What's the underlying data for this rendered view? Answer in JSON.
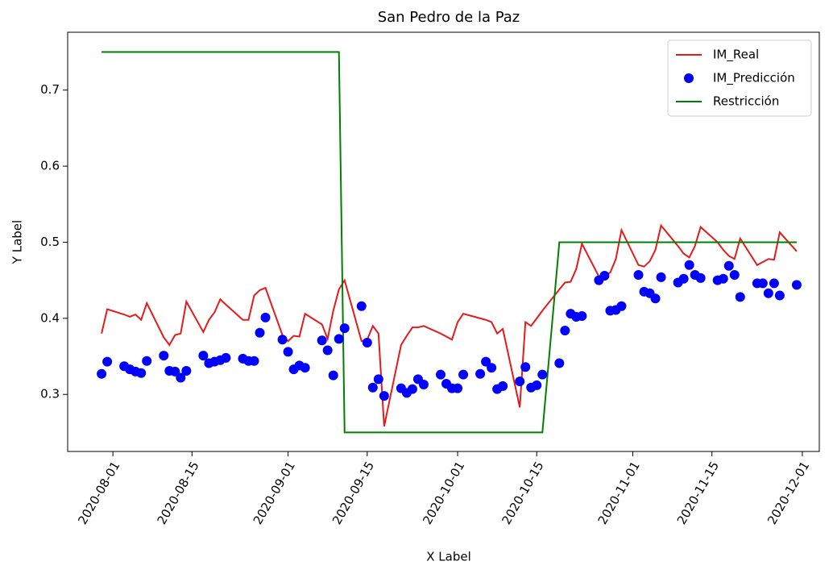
{
  "chart_data": {
    "type": "line",
    "title": "San Pedro de la Paz",
    "xlabel": "X Label",
    "ylabel": "Y Label",
    "x": [
      "2020-07-30",
      "2020-07-31",
      "2020-08-03",
      "2020-08-04",
      "2020-08-05",
      "2020-08-06",
      "2020-08-07",
      "2020-08-10",
      "2020-08-11",
      "2020-08-12",
      "2020-08-13",
      "2020-08-14",
      "2020-08-17",
      "2020-08-18",
      "2020-08-19",
      "2020-08-20",
      "2020-08-21",
      "2020-08-24",
      "2020-08-25",
      "2020-08-26",
      "2020-08-27",
      "2020-08-28",
      "2020-08-31",
      "2020-09-01",
      "2020-09-02",
      "2020-09-03",
      "2020-09-04",
      "2020-09-07",
      "2020-09-08",
      "2020-09-09",
      "2020-09-10",
      "2020-09-11",
      "2020-09-14",
      "2020-09-15",
      "2020-09-16",
      "2020-09-17",
      "2020-09-18",
      "2020-09-21",
      "2020-09-22",
      "2020-09-23",
      "2020-09-24",
      "2020-09-25",
      "2020-09-28",
      "2020-09-29",
      "2020-09-30",
      "2020-10-01",
      "2020-10-02",
      "2020-10-05",
      "2020-10-06",
      "2020-10-07",
      "2020-10-08",
      "2020-10-09",
      "2020-10-12",
      "2020-10-13",
      "2020-10-14",
      "2020-10-15",
      "2020-10-16",
      "2020-10-19",
      "2020-10-20",
      "2020-10-21",
      "2020-10-22",
      "2020-10-23",
      "2020-10-26",
      "2020-10-27",
      "2020-10-28",
      "2020-10-29",
      "2020-10-30",
      "2020-11-02",
      "2020-11-03",
      "2020-11-04",
      "2020-11-05",
      "2020-11-06",
      "2020-11-09",
      "2020-11-10",
      "2020-11-11",
      "2020-11-12",
      "2020-11-13",
      "2020-11-16",
      "2020-11-17",
      "2020-11-18",
      "2020-11-19",
      "2020-11-20",
      "2020-11-23",
      "2020-11-24",
      "2020-11-25",
      "2020-11-26",
      "2020-11-27",
      "2020-11-30"
    ],
    "series": [
      {
        "name": "IM_Real",
        "color": "#e41a1c",
        "style": "line",
        "values": [
          0.38,
          0.412,
          0.405,
          0.402,
          0.405,
          0.398,
          0.42,
          0.375,
          0.365,
          0.378,
          0.38,
          0.422,
          0.382,
          0.398,
          0.408,
          0.425,
          0.418,
          0.398,
          0.398,
          0.43,
          0.437,
          0.44,
          0.378,
          0.37,
          0.377,
          0.376,
          0.406,
          0.392,
          0.373,
          0.41,
          0.438,
          0.45,
          0.37,
          0.372,
          0.39,
          0.38,
          0.258,
          0.365,
          0.377,
          0.388,
          0.388,
          0.39,
          0.38,
          0.376,
          0.372,
          0.395,
          0.406,
          0.4,
          0.398,
          0.395,
          0.38,
          0.386,
          0.283,
          0.395,
          0.39,
          0.4,
          0.41,
          0.438,
          0.447,
          0.448,
          0.465,
          0.498,
          0.455,
          0.457,
          0.46,
          0.478,
          0.516,
          0.47,
          0.468,
          0.475,
          0.49,
          0.522,
          0.495,
          0.485,
          0.48,
          0.495,
          0.52,
          0.5,
          0.49,
          0.482,
          0.478,
          0.505,
          0.47,
          0.474,
          0.478,
          0.477,
          0.513,
          0.488
        ]
      },
      {
        "name": "IM_Predicción",
        "color": "#0000ff",
        "style": "scatter",
        "values": [
          0.327,
          0.343,
          0.337,
          0.333,
          0.33,
          0.328,
          0.344,
          0.351,
          0.331,
          0.33,
          0.322,
          0.331,
          0.351,
          0.341,
          0.343,
          0.345,
          0.348,
          0.347,
          0.344,
          0.344,
          0.381,
          0.401,
          0.372,
          0.356,
          0.333,
          0.338,
          0.335,
          0.371,
          0.358,
          0.325,
          0.373,
          0.387,
          0.416,
          0.368,
          0.309,
          0.32,
          0.298,
          0.308,
          0.302,
          0.307,
          0.32,
          0.313,
          0.326,
          0.314,
          0.308,
          0.308,
          0.326,
          0.327,
          0.343,
          0.335,
          0.307,
          0.311,
          0.317,
          0.336,
          0.309,
          0.312,
          0.326,
          0.341,
          0.384,
          0.406,
          0.402,
          0.403,
          0.45,
          0.456,
          0.41,
          0.411,
          0.416,
          0.457,
          0.435,
          0.433,
          0.426,
          0.454,
          0.447,
          0.452,
          0.47,
          0.457,
          0.453,
          0.45,
          0.452,
          0.469,
          0.457,
          0.428,
          0.446,
          0.446,
          0.433,
          0.446,
          0.43,
          0.444
        ]
      },
      {
        "name": "Restricción",
        "color": "#008000",
        "style": "line",
        "x": [
          "2020-07-30",
          "2020-09-10",
          "2020-09-11",
          "2020-10-16",
          "2020-10-19",
          "2020-11-30"
        ],
        "values": [
          0.75,
          0.75,
          0.25,
          0.25,
          0.5,
          0.5
        ]
      }
    ],
    "xlim": [
      "2020-07-24",
      "2020-12-04"
    ],
    "xticks": [
      "2020-08-01",
      "2020-08-15",
      "2020-09-01",
      "2020-09-15",
      "2020-10-01",
      "2020-10-15",
      "2020-11-01",
      "2020-11-15",
      "2020-12-01"
    ],
    "ylim": [
      0.225,
      0.776
    ],
    "yticks": [
      0.3,
      0.4,
      0.5,
      0.6,
      0.7
    ],
    "legend": "upper right"
  }
}
